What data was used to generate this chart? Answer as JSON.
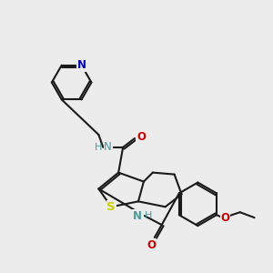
{
  "bg": "#ececec",
  "lw": 1.5,
  "colors": {
    "N": "#0000cc",
    "O": "#cc0000",
    "S": "#cccc00",
    "C": "#1a1a1a",
    "NH": "#4a9a9a"
  },
  "font_size": 8.5
}
